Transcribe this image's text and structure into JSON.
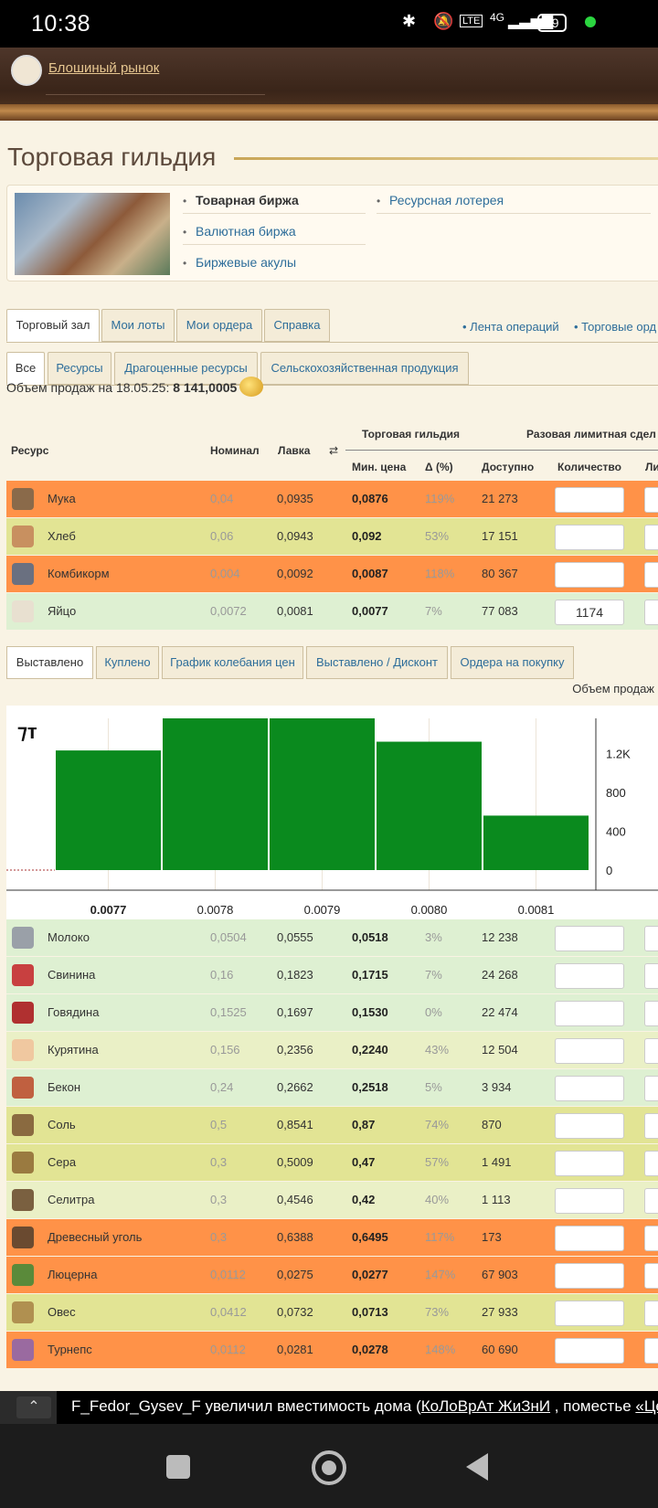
{
  "status": {
    "time": "10:38",
    "battery": "59",
    "network": "4G"
  },
  "header": {
    "market_link": "Блошиный рынок"
  },
  "page": {
    "title": "Торговая гильдия"
  },
  "guild_links": {
    "birzha": "Товарная биржа",
    "valuta": "Валютная биржа",
    "akuly": "Биржевые акулы",
    "lottery": "Ресурсная лотерея"
  },
  "tabs": {
    "hall": "Торговый зал",
    "my_lots": "Мои лоты",
    "my_orders": "Мои ордера",
    "help": "Справка"
  },
  "right_links": {
    "feed": "Лента операций",
    "trade": "Торговые орд"
  },
  "filter_tabs": {
    "all": "Все",
    "res": "Ресурсы",
    "precious": "Драгоценные ресурсы",
    "agri": "Сельскохозяйственная продукция"
  },
  "sales": {
    "label": "Объем продаж на 18.05.25:",
    "value": "8 141,0005"
  },
  "table_headers": {
    "resource": "Ресурс",
    "nominal": "Номинал",
    "lavka": "Лавка",
    "swap": "⇄",
    "guild": "Торговая гильдия",
    "limit": "Разовая лимитная сдел",
    "min_price": "Мин. цена",
    "delta": "Δ (%)",
    "available": "Доступно",
    "quantity": "Количество",
    "li": "Ли"
  },
  "rows_top": [
    {
      "name": "Мука",
      "nominal": "0,04",
      "lavka": "0,0935",
      "min": "0,0876",
      "pct": "119%",
      "avail": "21 273",
      "qty": "",
      "bg": "#ff9248",
      "icon": "#8a6a4a"
    },
    {
      "name": "Хлеб",
      "nominal": "0,06",
      "lavka": "0,0943",
      "min": "0,092",
      "pct": "53%",
      "avail": "17 151",
      "qty": "",
      "bg": "#e2e494",
      "icon": "#c89060"
    },
    {
      "name": "Комбикорм",
      "nominal": "0,004",
      "lavka": "0,0092",
      "min": "0,0087",
      "pct": "118%",
      "avail": "80 367",
      "qty": "",
      "bg": "#ff9248",
      "icon": "#6a7080"
    },
    {
      "name": "Яйцо",
      "nominal": "0,0072",
      "lavka": "0,0081",
      "min": "0,0077",
      "pct": "7%",
      "avail": "77 083",
      "qty": "1174",
      "bg": "#def0d2",
      "icon": "#e8e0d0"
    }
  ],
  "sub_tabs": {
    "listed": "Выставлено",
    "bought": "Куплено",
    "graph": "График колебания цен",
    "discount": "Выставлено / Дисконт",
    "orders": "Ордера на покупку"
  },
  "volume_label": "Объем продаж",
  "chart_data": {
    "type": "bar",
    "categories": [
      "0.0077",
      "0.0078",
      "0.0079",
      "0.0080",
      "0.0081"
    ],
    "values": [
      1230,
      1560,
      1560,
      1320,
      560
    ],
    "yticks": [
      "0",
      "400",
      "800",
      "1.2K"
    ],
    "ylim": [
      0,
      1560
    ],
    "color": "#0a8a1e"
  },
  "rows_bottom": [
    {
      "name": "Молоко",
      "nominal": "0,0504",
      "lavka": "0,0555",
      "min": "0,0518",
      "pct": "3%",
      "avail": "12 238",
      "bg": "#def0d2",
      "icon": "#9aa0a8"
    },
    {
      "name": "Свинина",
      "nominal": "0,16",
      "lavka": "0,1823",
      "min": "0,1715",
      "pct": "7%",
      "avail": "24 268",
      "bg": "#def0d2",
      "icon": "#c84040"
    },
    {
      "name": "Говядина",
      "nominal": "0,1525",
      "lavka": "0,1697",
      "min": "0,1530",
      "pct": "0%",
      "avail": "22 474",
      "bg": "#def0d2",
      "icon": "#b03030"
    },
    {
      "name": "Курятина",
      "nominal": "0,156",
      "lavka": "0,2356",
      "min": "0,2240",
      "pct": "43%",
      "avail": "12 504",
      "bg": "#eaf0c6",
      "icon": "#f0c8a0"
    },
    {
      "name": "Бекон",
      "nominal": "0,24",
      "lavka": "0,2662",
      "min": "0,2518",
      "pct": "5%",
      "avail": "3 934",
      "bg": "#def0d2",
      "icon": "#c06040"
    },
    {
      "name": "Соль",
      "nominal": "0,5",
      "lavka": "0,8541",
      "min": "0,87",
      "pct": "74%",
      "avail": "870",
      "bg": "#e2e494",
      "icon": "#8a6a40"
    },
    {
      "name": "Сера",
      "nominal": "0,3",
      "lavka": "0,5009",
      "min": "0,47",
      "pct": "57%",
      "avail": "1 491",
      "bg": "#e2e494",
      "icon": "#9a7a40"
    },
    {
      "name": "Селитра",
      "nominal": "0,3",
      "lavka": "0,4546",
      "min": "0,42",
      "pct": "40%",
      "avail": "1 113",
      "bg": "#eaf0c6",
      "icon": "#7a6040"
    },
    {
      "name": "Древесный уголь",
      "nominal": "0,3",
      "lavka": "0,6388",
      "min": "0,6495",
      "pct": "117%",
      "avail": "173",
      "bg": "#ff9248",
      "icon": "#6a4a30"
    },
    {
      "name": "Люцерна",
      "nominal": "0,0112",
      "lavka": "0,0275",
      "min": "0,0277",
      "pct": "147%",
      "avail": "67 903",
      "bg": "#ff9248",
      "icon": "#5a8a3a"
    },
    {
      "name": "Овес",
      "nominal": "0,0412",
      "lavka": "0,0732",
      "min": "0,0713",
      "pct": "73%",
      "avail": "27 933",
      "bg": "#e2e494",
      "icon": "#b09050"
    },
    {
      "name": "Турнепс",
      "nominal": "0,0112",
      "lavka": "0,0281",
      "min": "0,0278",
      "pct": "148%",
      "avail": "60 690",
      "bg": "#ff9248",
      "icon": "#9a6aa0"
    }
  ],
  "ticker": {
    "arrow": "⌃",
    "text": "F_Fedor_Gysev_F увеличил вместимость дома (",
    "link1": "КоЛоВрАт ЖиЗнИ",
    "mid": " , поместье ",
    "link2": "«ЦеНи"
  },
  "nav": {
    "square": "■",
    "home": "◉",
    "back": "◀"
  }
}
